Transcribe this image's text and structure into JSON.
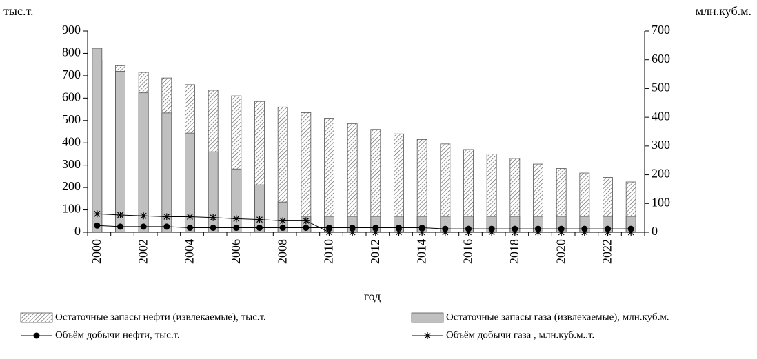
{
  "chart_data": {
    "type": "bar",
    "xlabel": "год",
    "ylabel": "тыс.т.",
    "y2label": "млн.куб.м.",
    "categories": [
      "2000",
      null,
      "2002",
      null,
      "2004",
      null,
      "2006",
      null,
      "2008",
      null,
      "2010",
      null,
      "2012",
      null,
      "2014",
      null,
      "2016",
      null,
      "2018",
      null,
      "2020",
      null,
      "2022",
      null
    ],
    "ylim": [
      0,
      900
    ],
    "yticks": [
      0,
      100,
      200,
      300,
      400,
      500,
      600,
      700,
      800,
      900
    ],
    "y2lim": [
      0,
      700
    ],
    "y2ticks": [
      0,
      100,
      200,
      300,
      400,
      500,
      600,
      700
    ],
    "series": [
      {
        "name": "Остаточные запасы нефти (извлекаемые), тыс.т.",
        "type": "bar",
        "style": "hatch",
        "color": "#ffffff",
        "values": [
          770,
          745,
          715,
          690,
          660,
          635,
          610,
          585,
          560,
          535,
          510,
          485,
          460,
          440,
          415,
          395,
          370,
          350,
          330,
          305,
          285,
          265,
          245,
          225
        ]
      },
      {
        "name": "Остаточные запасы газа (извлекаемые), млн.куб.м.",
        "type": "bar",
        "style": "solid",
        "color": "#c0c0c0",
        "axis": "y2",
        "values": [
          640,
          560,
          485,
          415,
          345,
          280,
          220,
          165,
          105,
          55,
          55,
          55,
          55,
          55,
          55,
          55,
          55,
          55,
          55,
          55,
          55,
          55,
          55,
          55
        ]
      },
      {
        "name": "Объём добычи нефти, тыс.т.",
        "type": "line",
        "marker": "dot",
        "color": "#000000",
        "values": [
          30,
          25,
          25,
          25,
          20,
          20,
          20,
          20,
          20,
          20,
          20,
          20,
          20,
          20,
          20,
          15,
          15,
          15,
          15,
          15,
          15,
          15,
          15,
          15
        ]
      },
      {
        "name": "Объём добычи газа , млн.куб.м..т.",
        "type": "line",
        "marker": "star",
        "color": "#000000",
        "axis": "y2",
        "values": [
          64,
          60,
          57,
          54,
          54,
          51,
          47,
          44,
          40,
          40,
          0,
          0,
          0,
          0,
          0,
          0,
          0,
          0,
          0,
          0,
          0,
          0,
          0,
          0
        ]
      }
    ]
  }
}
